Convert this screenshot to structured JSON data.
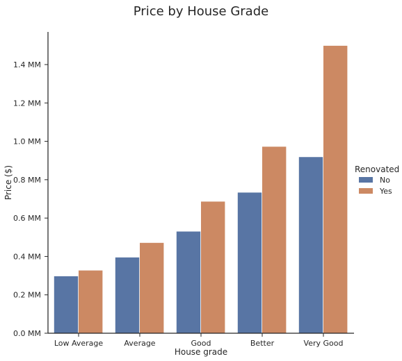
{
  "chart_data": {
    "type": "bar",
    "title": "Price by House Grade",
    "xlabel": "House grade",
    "ylabel": "Price ($)",
    "categories": [
      "Low Average",
      "Average",
      "Good",
      "Better",
      "Very Good"
    ],
    "series": [
      {
        "name": "No",
        "color": "#5875a4",
        "values": [
          0.297,
          0.395,
          0.53,
          0.733,
          0.918
        ]
      },
      {
        "name": "Yes",
        "color": "#cc8963",
        "values": [
          0.327,
          0.471,
          0.686,
          0.972,
          1.498
        ]
      }
    ],
    "ylim": [
      0,
      1.57
    ],
    "yticks": [
      {
        "value": 0.0,
        "label": "0.0 MM"
      },
      {
        "value": 0.2,
        "label": "0.2 MM"
      },
      {
        "value": 0.4,
        "label": "0.4 MM"
      },
      {
        "value": 0.6,
        "label": "0.6 MM"
      },
      {
        "value": 0.8,
        "label": "0.8 MM"
      },
      {
        "value": 1.0,
        "label": "1.0 MM"
      },
      {
        "value": 1.2,
        "label": "1.2 MM"
      },
      {
        "value": 1.4,
        "label": "1.4 MM"
      }
    ],
    "legend": {
      "title": "Renovated",
      "placement": "right"
    },
    "grid": false
  }
}
